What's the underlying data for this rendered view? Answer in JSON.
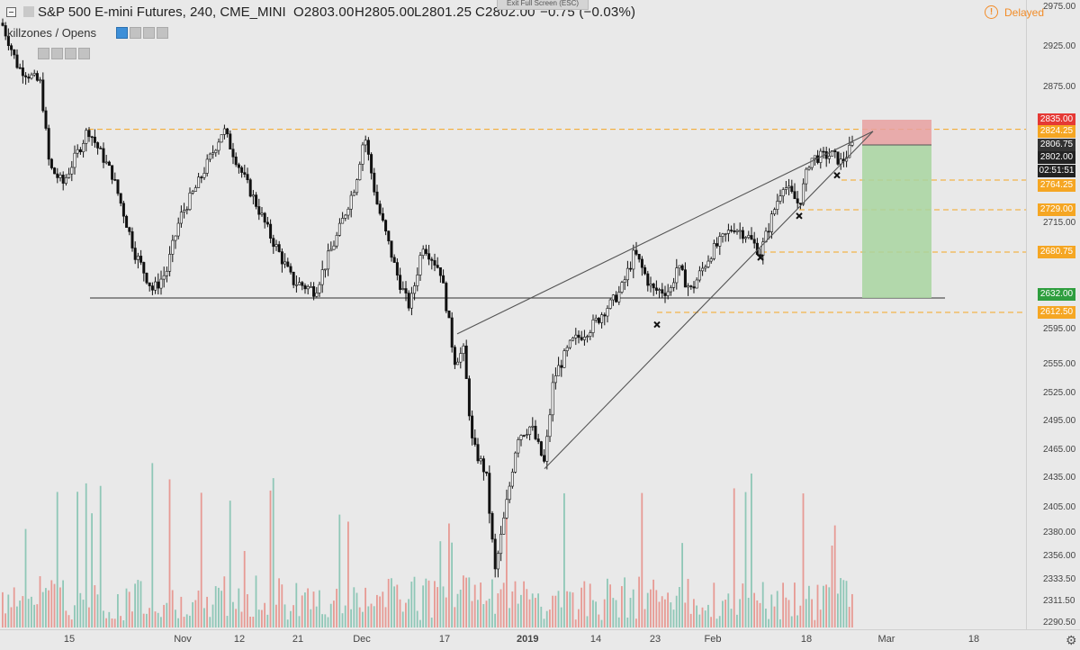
{
  "header": {
    "symbol": "S&P 500 E-mini Futures, 240, CME_MINI",
    "open": "O2803.00",
    "high": "H2805.00",
    "low": "L2801.25",
    "close": "C2802.00",
    "change": "−0.75 (−0.03%)",
    "exit_fullscreen": "Exit Full Screen (ESC)",
    "delayed_label": "Delayed",
    "delayed_icon": "!"
  },
  "study": {
    "label": "killzones / Opens"
  },
  "price_tags": [
    {
      "label": "2835.00",
      "color": "#e53935"
    },
    {
      "label": "2824.25",
      "color": "#f5a623"
    },
    {
      "label": "2806.75",
      "color": "#333333"
    },
    {
      "label": "2802.00",
      "color": "#222222"
    },
    {
      "label": "02:51:51",
      "color": "#222222"
    },
    {
      "label": "2764.25",
      "color": "#f5a623"
    },
    {
      "label": "2729.00",
      "color": "#f5a623"
    },
    {
      "label": "2680.75",
      "color": "#f5a623"
    },
    {
      "label": "2632.00",
      "color": "#2e9e3e"
    },
    {
      "label": "2612.50",
      "color": "#f5a623"
    }
  ],
  "chart_data": {
    "type": "candlestick",
    "price_axis_ticks": [
      "2975.00",
      "2925.00",
      "2875.00",
      "2715.00",
      "2680.00",
      "2595.00",
      "2555.00",
      "2525.00",
      "2495.00",
      "2465.00",
      "2435.00",
      "2405.00",
      "2380.00",
      "2356.00",
      "2333.50",
      "2311.50",
      "2290.50"
    ],
    "time_axis_ticks": [
      "15",
      "Nov",
      "12",
      "21",
      "Dec",
      "17",
      "2019",
      "14",
      "23",
      "Feb",
      "18",
      "Mar",
      "18"
    ],
    "colors": {
      "candle": "#111111",
      "volume_up": "#8fc7b7",
      "volume_down": "#e79a94",
      "fib_line": "#f5a623",
      "support_line": "#555555",
      "wedge_line": "#555555",
      "stop_zone": "#e8a0a0",
      "target_zone": "#a8d5a0"
    },
    "key_price_levels": [
      2835.0,
      2824.25,
      2806.75,
      2802.0,
      2764.25,
      2729.0,
      2680.75,
      2632.0,
      2612.5
    ],
    "annotations": {
      "support_level": 2632.0,
      "stop_loss": 2835.0,
      "take_profit": 2632.0,
      "entry": 2806.75
    }
  }
}
